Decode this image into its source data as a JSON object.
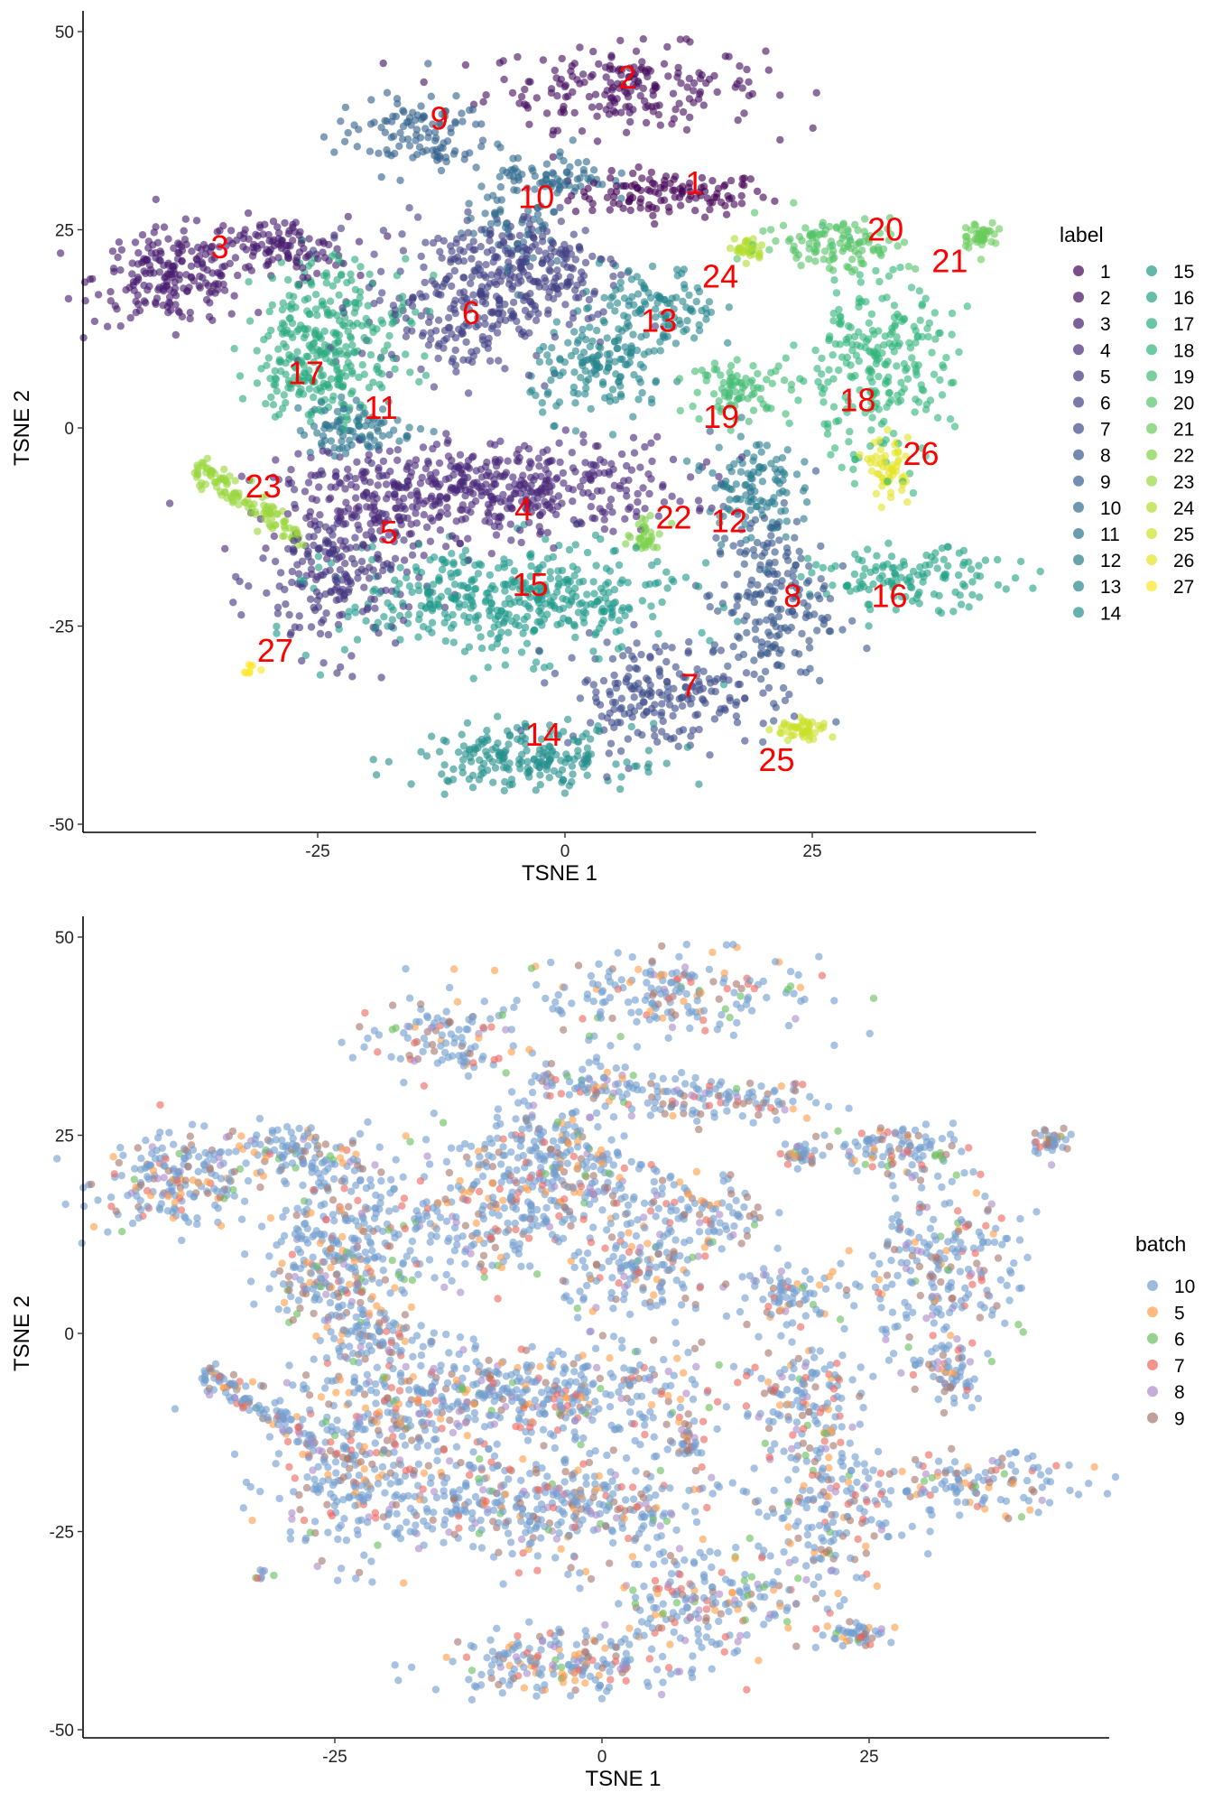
{
  "chart_data": [
    {
      "type": "scatter",
      "xlabel": "TSNE 1",
      "ylabel": "TSNE 2",
      "xlim": [
        -48,
        48
      ],
      "ylim": [
        -51,
        52
      ],
      "xticks": [
        "-25",
        "0",
        "25"
      ],
      "yticks": [
        "50",
        "25",
        "0",
        "-25",
        "-50"
      ],
      "grid": false,
      "color_by": "label",
      "legend": {
        "title": "label",
        "placement": "right",
        "palette": "viridis",
        "entries": [
          "1",
          "2",
          "3",
          "4",
          "5",
          "6",
          "7",
          "8",
          "9",
          "10",
          "11",
          "12",
          "13",
          "14",
          "15",
          "16",
          "17",
          "18",
          "19",
          "20",
          "21",
          "22",
          "23",
          "24",
          "25",
          "26",
          "27"
        ]
      },
      "cluster_labels": [
        {
          "text": "1",
          "x": 13.1,
          "y": 31.0
        },
        {
          "text": "2",
          "x": 6.3,
          "y": 44.3
        },
        {
          "text": "3",
          "x": -34.9,
          "y": 22.9
        },
        {
          "text": "4",
          "x": -4.2,
          "y": -10.2
        },
        {
          "text": "5",
          "x": -17.8,
          "y": -13.1
        },
        {
          "text": "6",
          "x": -9.5,
          "y": 14.6
        },
        {
          "text": "7",
          "x": 12.6,
          "y": -32.4
        },
        {
          "text": "8",
          "x": 23.0,
          "y": -21.1
        },
        {
          "text": "9",
          "x": -12.7,
          "y": 39.1
        },
        {
          "text": "10",
          "x": -2.9,
          "y": 29.2
        },
        {
          "text": "11",
          "x": -18.6,
          "y": 2.6
        },
        {
          "text": "12",
          "x": 16.6,
          "y": -11.7
        },
        {
          "text": "13",
          "x": 9.5,
          "y": 13.6
        },
        {
          "text": "14",
          "x": -2.2,
          "y": -38.6
        },
        {
          "text": "15",
          "x": -3.5,
          "y": -19.7
        },
        {
          "text": "16",
          "x": 32.8,
          "y": -21.1
        },
        {
          "text": "17",
          "x": -26.2,
          "y": 7.0
        },
        {
          "text": "18",
          "x": 29.6,
          "y": 3.6
        },
        {
          "text": "19",
          "x": 15.8,
          "y": 1.5
        },
        {
          "text": "20",
          "x": 32.4,
          "y": 25.1
        },
        {
          "text": "21",
          "x": 38.9,
          "y": 21.1
        },
        {
          "text": "22",
          "x": 11.0,
          "y": -11.2
        },
        {
          "text": "23",
          "x": -30.5,
          "y": -7.3
        },
        {
          "text": "24",
          "x": 15.7,
          "y": 19.2
        },
        {
          "text": "25",
          "x": 21.4,
          "y": -41.8
        },
        {
          "text": "26",
          "x": 36.0,
          "y": -3.2
        },
        {
          "text": "27",
          "x": -29.3,
          "y": -28.0
        }
      ],
      "label_color": "#ff0000"
    },
    {
      "type": "scatter",
      "xlabel": "TSNE 1",
      "ylabel": "TSNE 2",
      "xlim": [
        -48,
        48
      ],
      "ylim": [
        -51,
        52
      ],
      "xticks": [
        "-25",
        "0",
        "25"
      ],
      "yticks": [
        "50",
        "25",
        "0",
        "-25",
        "-50"
      ],
      "grid": false,
      "color_by": "batch",
      "legend": {
        "title": "batch",
        "placement": "right",
        "entries": [
          {
            "name": "10",
            "color": "#729ECE"
          },
          {
            "name": "5",
            "color": "#FF9E4A"
          },
          {
            "name": "6",
            "color": "#67BF5C"
          },
          {
            "name": "7",
            "color": "#ED665D"
          },
          {
            "name": "8",
            "color": "#AD8BC9"
          },
          {
            "name": "9",
            "color": "#A8786E"
          }
        ]
      }
    }
  ]
}
